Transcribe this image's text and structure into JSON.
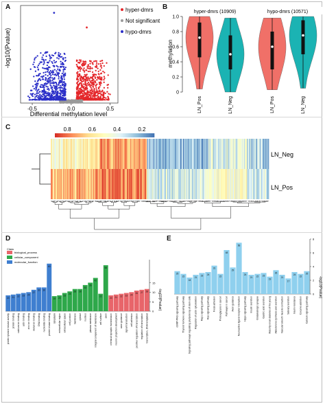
{
  "panels": {
    "A": "A",
    "B": "B",
    "C": "C",
    "D": "D",
    "E": "E"
  },
  "chart_data": [
    {
      "panel": "A",
      "type": "scatter",
      "xlabel": "Differential methylation level",
      "ylabel": "-log10(Pvalue)",
      "xlim": [
        -0.65,
        0.6
      ],
      "ylim": [
        0,
        40
      ],
      "xticks": [
        "-0.5",
        "0.0",
        "0.5"
      ],
      "legend": {
        "placement": "right",
        "entries": [
          "hyper-dmrs",
          "Not significant",
          "hypo-dmrs"
        ]
      },
      "colors": {
        "hyper-dmrs": "#e4262a",
        "Not significant": "#9a9a9a",
        "hypo-dmrs": "#2b2fc8"
      },
      "series": [
        {
          "name": "hyper-dmrs",
          "x_range": [
            0.05,
            0.5
          ],
          "y_range": [
            1.3,
            31
          ],
          "approx_points": 700
        },
        {
          "name": "Not significant",
          "x_range": [
            -0.15,
            0.15
          ],
          "y_range": [
            0,
            1.3
          ],
          "approx_points": 200
        },
        {
          "name": "hypo-dmrs",
          "x_range": [
            -0.55,
            -0.05
          ],
          "y_range": [
            1.3,
            37
          ],
          "approx_points": 650
        }
      ]
    },
    {
      "panel": "B",
      "type": "violin",
      "ylabel": "methylation",
      "ylim": [
        0,
        1.0
      ],
      "yticks": [
        "0",
        "0.2",
        "0.4",
        "0.6",
        "0.8",
        "1.0"
      ],
      "groups": [
        {
          "title": "hyper-dmrs (10909)",
          "violins": [
            {
              "label": "LN_Pos",
              "color": "#f07068",
              "median": 0.72,
              "q1": 0.46,
              "q3": 0.92,
              "min": 0.04,
              "max": 1.0
            },
            {
              "label": "LN_Neg",
              "color": "#1bb3b3",
              "median": 0.5,
              "q1": 0.3,
              "q3": 0.75,
              "min": 0.0,
              "max": 0.98
            }
          ]
        },
        {
          "title": "hypo-dmrs (10571)",
          "violins": [
            {
              "label": "LN_Pos",
              "color": "#f07068",
              "median": 0.6,
              "q1": 0.3,
              "q3": 0.8,
              "min": 0.03,
              "max": 0.98
            },
            {
              "label": "LN_Neg",
              "color": "#1bb3b3",
              "median": 0.75,
              "q1": 0.5,
              "q3": 0.95,
              "min": 0.05,
              "max": 1.0
            }
          ]
        }
      ]
    },
    {
      "panel": "C",
      "type": "heatmap",
      "legend_ticks": [
        "0.8",
        "0.6",
        "0.4",
        "0.2"
      ],
      "rows": [
        "LN_Neg",
        "LN_Pos"
      ],
      "colormap": [
        "#d73027",
        "#fc8d59",
        "#fee090",
        "#ffffbf",
        "#e0f3f8",
        "#91bfdb",
        "#4575b4"
      ]
    },
    {
      "panel": "D",
      "type": "bar",
      "ylabel": "-log10(Pvalue)",
      "yticks": [
        "0",
        "5",
        "10",
        "15"
      ],
      "legend_title": "Class",
      "legend": [
        {
          "name": "biological_process",
          "color": "#e8656a"
        },
        {
          "name": "cellular_component",
          "color": "#2ea84a"
        },
        {
          "name": "molecular_function",
          "color": "#3f7fd0"
        }
      ],
      "bars": [
        {
          "category": "protein tyrosine kinase activity",
          "value": 20,
          "class": "molecular_function"
        },
        {
          "category": "protein binding",
          "value": 21,
          "class": "molecular_function"
        },
        {
          "category": "calcium ion binding",
          "value": 22,
          "class": "molecular_function"
        },
        {
          "category": "actin binding",
          "value": 23,
          "class": "molecular_function"
        },
        {
          "category": "zinc ion binding",
          "value": 24,
          "class": "molecular_function"
        },
        {
          "category": "metal ion binding",
          "value": 27,
          "class": "molecular_function"
        },
        {
          "category": "DNA binding",
          "value": 30,
          "class": "molecular_function"
        },
        {
          "category": "nucleotide binding",
          "value": 30,
          "class": "molecular_function"
        },
        {
          "category": "protein kinase binding",
          "value": 60,
          "class": "molecular_function"
        },
        {
          "category": "cytoplasm",
          "value": 19,
          "class": "cellular_component"
        },
        {
          "category": "extracellular region",
          "value": 20,
          "class": "cellular_component"
        },
        {
          "category": "extracellular space",
          "value": 23,
          "class": "cellular_component"
        },
        {
          "category": "cell junction",
          "value": 25,
          "class": "cellular_component"
        },
        {
          "category": "membrane",
          "value": 28,
          "class": "cellular_component"
        },
        {
          "category": "cytosol",
          "value": 28,
          "class": "cellular_component"
        },
        {
          "category": "nucleus",
          "value": 33,
          "class": "cellular_component"
        },
        {
          "category": "plasma membrane",
          "value": 36,
          "class": "cellular_component"
        },
        {
          "category": "integral component of membrane",
          "value": 42,
          "class": "cellular_component"
        },
        {
          "category": "cell surface",
          "value": 22,
          "class": "cellular_component"
        },
        {
          "category": "axon",
          "value": 58,
          "class": "cellular_component"
        },
        {
          "category": "chemical synaptic transmission",
          "value": 20,
          "class": "biological_process"
        },
        {
          "category": "neuron projection development",
          "value": 21,
          "class": "biological_process"
        },
        {
          "category": "axon guidance",
          "value": 22,
          "class": "biological_process"
        },
        {
          "category": "signal transduction",
          "value": 23,
          "class": "biological_process"
        },
        {
          "category": "cell adhesion",
          "value": 24,
          "class": "biological_process"
        },
        {
          "category": "positive regulation of transcription",
          "value": 26,
          "class": "biological_process"
        },
        {
          "category": "regulation of transcription",
          "value": 27,
          "class": "biological_process"
        },
        {
          "category": "transcription, DNA-templated",
          "value": 28,
          "class": "biological_process"
        }
      ]
    },
    {
      "panel": "E",
      "type": "bar",
      "ylabel": "-log10(Pvalue)",
      "yticks": [
        "0",
        "2",
        "4",
        "6",
        "8"
      ],
      "color": "#8fd0ee",
      "bars": [
        {
          "category": "cGMP-PKG signaling pathway",
          "value": 25
        },
        {
          "category": "Thyroid hormone signaling pathway",
          "value": 22
        },
        {
          "category": "Signaling pathways regulating pluripotency of stem cells",
          "value": 18
        },
        {
          "category": "Regulation of actin cytoskeleton",
          "value": 21
        },
        {
          "category": "Rap1 signaling pathway",
          "value": 23
        },
        {
          "category": "Ras signaling pathway",
          "value": 24
        },
        {
          "category": "Focal adhesion",
          "value": 31
        },
        {
          "category": "Proteoglycans in cancer",
          "value": 22
        },
        {
          "category": "Pathways in cancer",
          "value": 48
        },
        {
          "category": "Axon guidance",
          "value": 29
        },
        {
          "category": "Neuroactive ligand-receptor interaction",
          "value": 56
        },
        {
          "category": "Hippo signaling pathway",
          "value": 24
        },
        {
          "category": "Insulin secretion",
          "value": 21
        },
        {
          "category": "Glutamatergic synapse",
          "value": 22
        },
        {
          "category": "Gastric acid secretion",
          "value": 23
        },
        {
          "category": "Maturity onset diabetes of the young",
          "value": 19
        },
        {
          "category": "Aldosterone synthesis and secretion",
          "value": 26
        },
        {
          "category": "Vascular smooth muscle contraction",
          "value": 21
        },
        {
          "category": "Salivary secretion",
          "value": 17
        },
        {
          "category": "Insulin resistance",
          "value": 24
        },
        {
          "category": "Cocaine addiction",
          "value": 22
        },
        {
          "category": "Calcium signaling pathway",
          "value": 25
        }
      ]
    }
  ]
}
